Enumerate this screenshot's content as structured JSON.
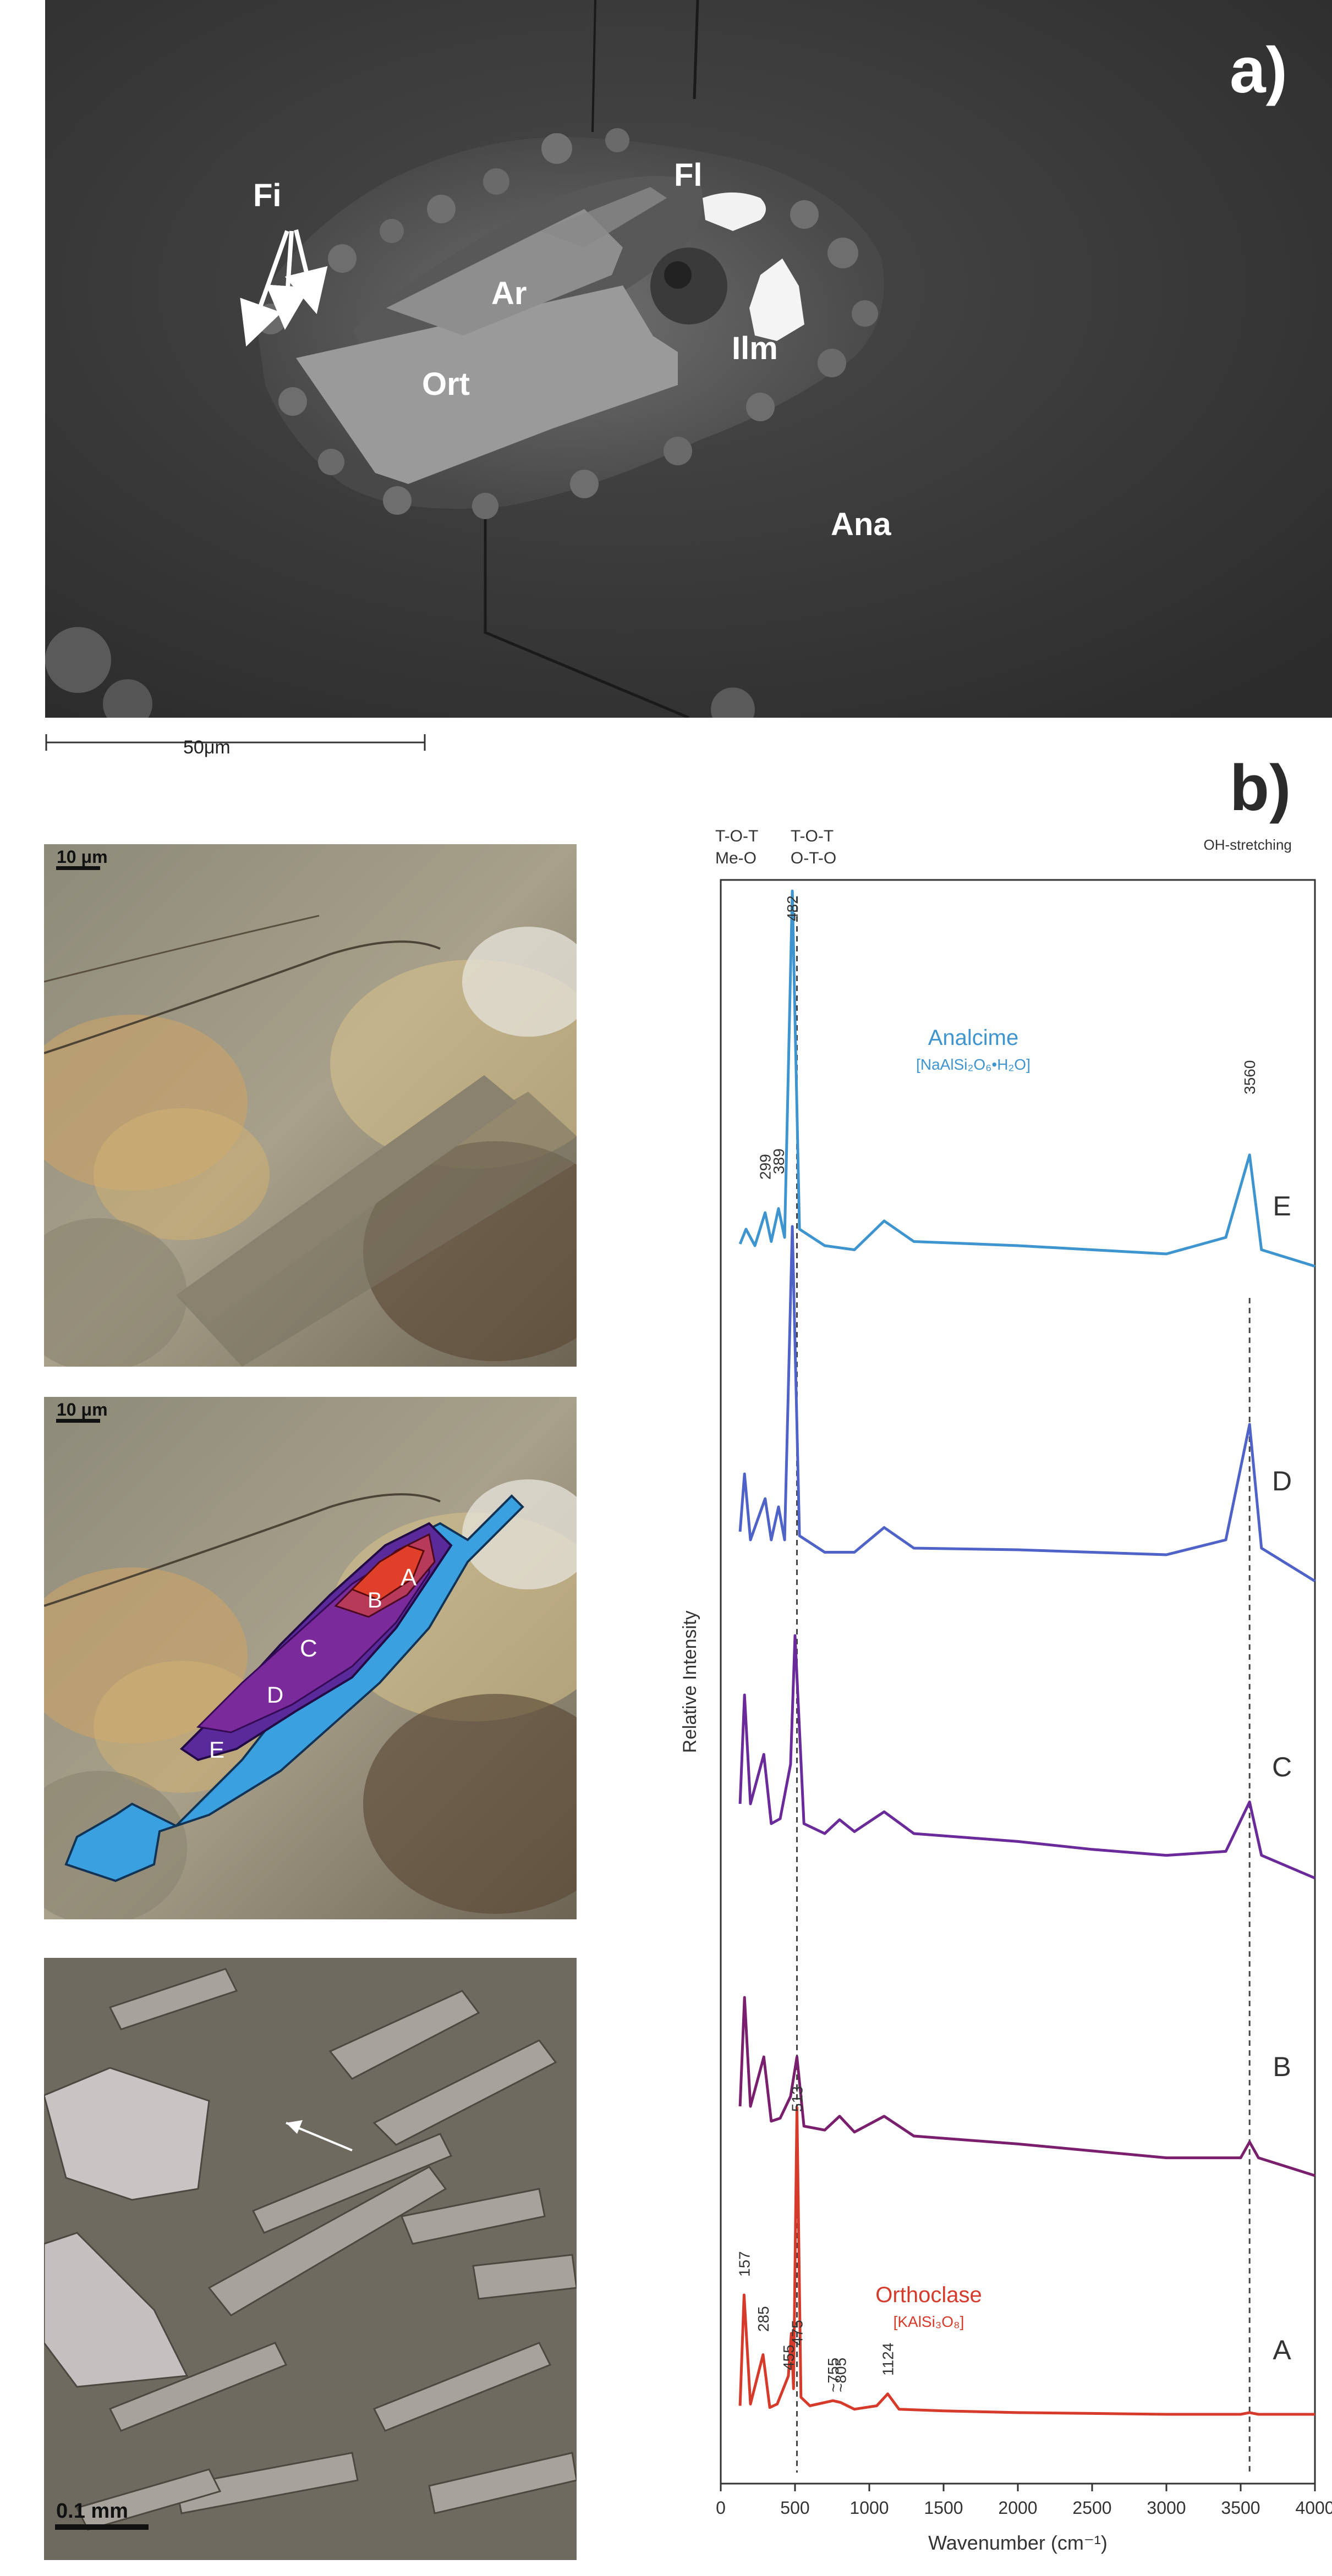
{
  "panel_a": {
    "panel_label": "a)",
    "labels": {
      "fi": "Fi",
      "fl": "Fl",
      "ar": "Ar",
      "ilm": "Ilm",
      "ort": "Ort",
      "ana": "Ana"
    },
    "scale_bar_label": "50μm"
  },
  "panel_b": {
    "panel_label": "b)",
    "micrographs": {
      "top_scale": "10 μm",
      "middle_scale": "10 μm",
      "bottom_scale": "0.1 mm",
      "zones": [
        "A",
        "B",
        "C",
        "D",
        "E"
      ]
    }
  },
  "chart_data": {
    "type": "line",
    "xlabel": "Wavenumber (cm⁻¹)",
    "ylabel": "Relative Intensity",
    "xlim": [
      0,
      4000
    ],
    "x_ticks": [
      "0",
      "500",
      "1000",
      "1500",
      "2000",
      "2500",
      "3000",
      "3500",
      "4000"
    ],
    "band_labels": {
      "left_top": "T-O-T",
      "left_bottom": "Me-O",
      "mid_top": "T-O-T",
      "mid_bottom": "O-T-O",
      "right": "OH-stretching"
    },
    "mineral_labels": {
      "analcime": "Analcime",
      "analcime_formula": "[NaAlSi₂O₆•H₂O]",
      "orthoclase": "Orthoclase",
      "orthoclase_formula": "[KAlSi₃O₈]"
    },
    "peak_labels": {
      "p482": "482",
      "p299": "299",
      "p389": "389",
      "p3560": "3560",
      "p513": "513",
      "p157": "157",
      "p285": "285",
      "p455": "455",
      "p475": "475",
      "p755": "~755",
      "p805": "~805",
      "p1124": "1124"
    },
    "reference_lines_x": [
      513,
      3560
    ],
    "series": [
      {
        "name": "A",
        "color": "#d63a2a",
        "x": [
          130,
          157,
          200,
          285,
          330,
          380,
          455,
          475,
          490,
          513,
          540,
          600,
          755,
          805,
          900,
          1050,
          1124,
          1200,
          1500,
          2000,
          2500,
          3000,
          3500,
          3560,
          3620,
          4000
        ],
        "y": [
          0.1,
          1.4,
          0.12,
          0.7,
          0.08,
          0.12,
          0.45,
          0.95,
          0.3,
          3.6,
          0.2,
          0.1,
          0.16,
          0.14,
          0.06,
          0.1,
          0.24,
          0.06,
          0.04,
          0.02,
          0.01,
          0.0,
          0.0,
          0.02,
          0.0,
          0.0
        ]
      },
      {
        "name": "B",
        "color": "#7a1f6e",
        "x": [
          130,
          160,
          200,
          290,
          340,
          400,
          470,
          513,
          560,
          700,
          800,
          900,
          1100,
          1300,
          2000,
          2500,
          3000,
          3500,
          3560,
          3620,
          4000
        ],
        "y": [
          0.5,
          1.6,
          0.5,
          1.0,
          0.35,
          0.38,
          0.6,
          1.0,
          0.3,
          0.26,
          0.4,
          0.24,
          0.4,
          0.2,
          0.12,
          0.05,
          -0.02,
          -0.02,
          0.14,
          -0.02,
          -0.2
        ]
      },
      {
        "name": "C",
        "color": "#6a2a9a",
        "x": [
          130,
          160,
          200,
          290,
          340,
          400,
          470,
          500,
          560,
          700,
          800,
          900,
          1100,
          1300,
          2000,
          2500,
          3000,
          3400,
          3560,
          3640,
          4000
        ],
        "y": [
          0.5,
          1.6,
          0.5,
          1.0,
          0.3,
          0.35,
          0.9,
          2.2,
          0.3,
          0.2,
          0.34,
          0.22,
          0.42,
          0.2,
          0.12,
          0.04,
          -0.02,
          0.02,
          0.52,
          -0.02,
          -0.25
        ]
      },
      {
        "name": "D",
        "color": "#4e62c8",
        "x": [
          130,
          160,
          200,
          299,
          340,
          389,
          430,
          482,
          530,
          700,
          900,
          1100,
          1300,
          2000,
          2500,
          3000,
          3400,
          3560,
          3640,
          4000
        ],
        "y": [
          0.3,
          1.0,
          0.2,
          0.7,
          0.2,
          0.6,
          0.2,
          4.0,
          0.25,
          0.05,
          0.05,
          0.35,
          0.1,
          0.08,
          0.05,
          0.02,
          0.2,
          1.6,
          0.1,
          -0.3
        ]
      },
      {
        "name": "E",
        "color": "#3d94cf",
        "x": [
          130,
          170,
          230,
          299,
          340,
          389,
          430,
          482,
          530,
          700,
          900,
          1100,
          1300,
          2000,
          2500,
          3000,
          3400,
          3560,
          3640,
          4000
        ],
        "y": [
          0.12,
          0.3,
          0.1,
          0.5,
          0.15,
          0.55,
          0.2,
          4.4,
          0.3,
          0.1,
          0.05,
          0.4,
          0.15,
          0.1,
          0.05,
          0.0,
          0.2,
          1.2,
          0.05,
          -0.15
        ]
      }
    ],
    "trace_labels": [
      "E",
      "D",
      "C",
      "B",
      "A"
    ]
  }
}
